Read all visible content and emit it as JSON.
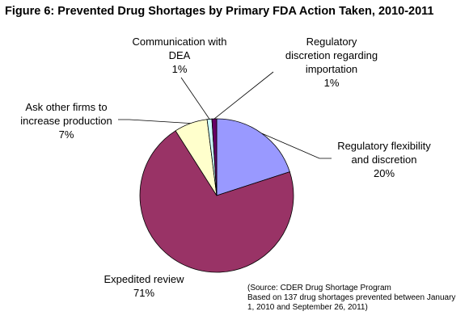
{
  "title": "Figure 6: Prevented Drug Shortages by Primary FDA Action Taken, 2010-2011",
  "chart_data": {
    "type": "pie",
    "title": "Figure 6: Prevented Drug Shortages by Primary FDA Action Taken, 2010-2011",
    "start_angle_deg": 0,
    "direction": "clockwise",
    "legend": "none",
    "slices": [
      {
        "label_lines": [
          "Regulatory flexibility",
          "and discretion"
        ],
        "value": 20,
        "value_label": "20%",
        "color": "#9999ff"
      },
      {
        "label_lines": [
          "Expedited review"
        ],
        "value": 71,
        "value_label": "71%",
        "color": "#993366"
      },
      {
        "label_lines": [
          "Ask other firms to",
          "increase production"
        ],
        "value": 7,
        "value_label": "7%",
        "color": "#ffffcc"
      },
      {
        "label_lines": [
          "Communication with",
          "DEA"
        ],
        "value": 1,
        "value_label": "1%",
        "color": "#ccffff"
      },
      {
        "label_lines": [
          "Regulatory",
          "discretion regarding",
          "importation"
        ],
        "value": 1,
        "value_label": "1%",
        "color": "#660066"
      }
    ]
  },
  "source_note": [
    "(Source: CDER Drug Shortage Program",
    "Based on 137 drug shortages prevented between January",
    "1, 2010 and September 26, 2011)"
  ]
}
